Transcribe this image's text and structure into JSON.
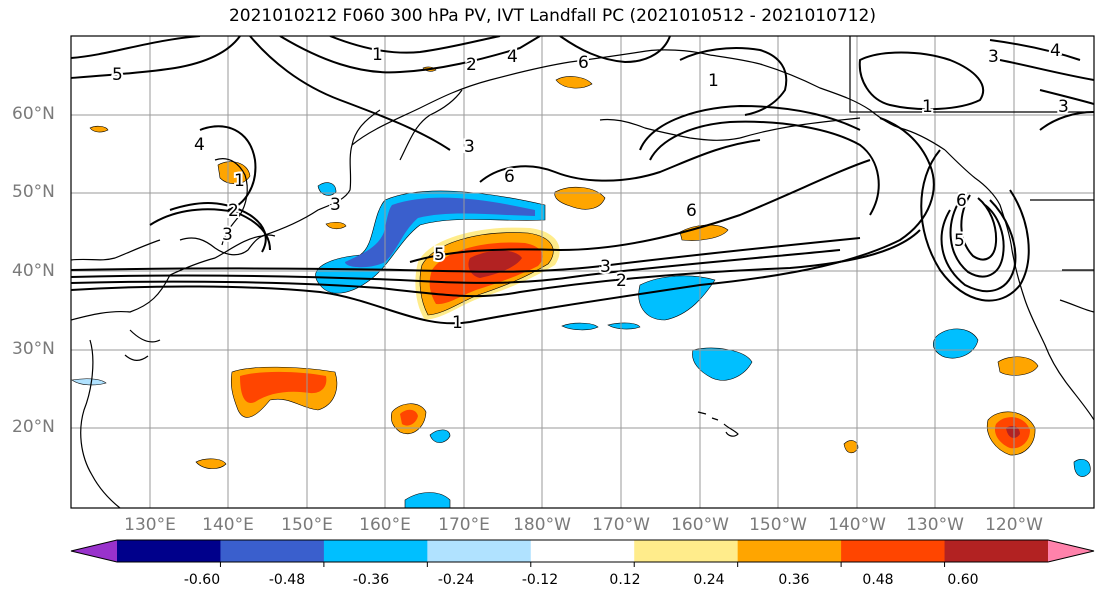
{
  "title": "2021010212 F060 300 hPa PV, IVT Landfall PC (2021010512 - 2021010712)",
  "latitude_labels": [
    "60°N",
    "50°N",
    "40°N",
    "30°N",
    "20°N"
  ],
  "longitude_labels": [
    "130°E",
    "140°E",
    "150°E",
    "160°E",
    "170°E",
    "180°W",
    "170°W",
    "160°W",
    "150°W",
    "140°W",
    "130°W",
    "120°W"
  ],
  "colorbar": {
    "tick_labels": [
      "-0.60",
      "-0.48",
      "-0.36",
      "-0.24",
      "-0.12",
      "0.12",
      "0.24",
      "0.36",
      "0.48",
      "0.60"
    ],
    "colors": [
      "#9932cc",
      "#00008b",
      "#3a5fcd",
      "#00bfff",
      "#b0e2ff",
      "#ffffff",
      "#ffec8b",
      "#ffa500",
      "#ff4500",
      "#b22222",
      "#ff82ab"
    ]
  },
  "contour_labels": [
    "1",
    "2",
    "3",
    "4",
    "5",
    "6",
    "1",
    "2",
    "3",
    "5",
    "6",
    "3",
    "6",
    "3",
    "2",
    "1",
    "4",
    "5",
    "6",
    "1",
    "3",
    "4",
    "3",
    "1"
  ],
  "legend": {
    "contours": "300 hPa PV",
    "shading": "IVT Landfall PC"
  }
}
